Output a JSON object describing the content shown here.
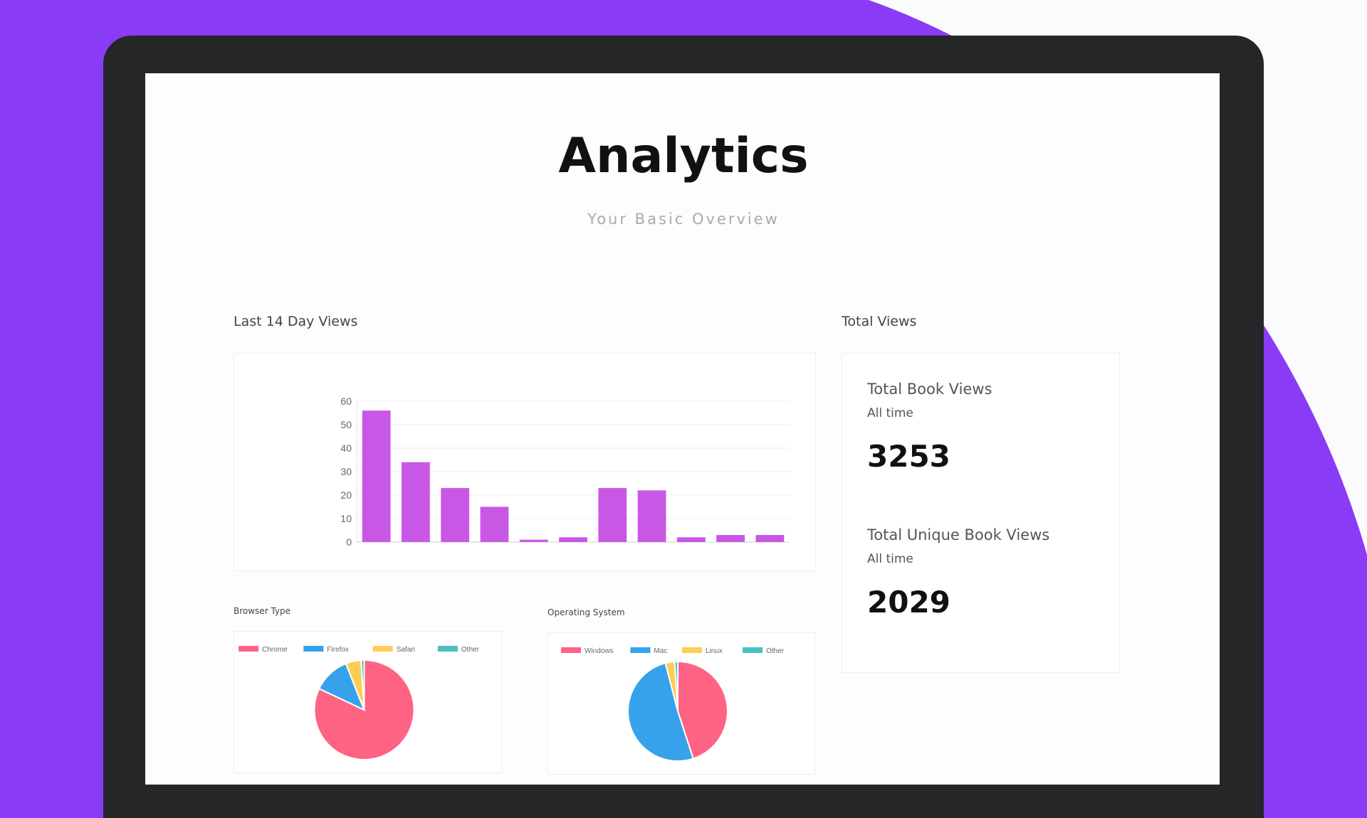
{
  "header": {
    "title": "Analytics",
    "subtitle": "Your Basic Overview"
  },
  "sections": {
    "last14": "Last 14 Day Views",
    "total": "Total Views",
    "browser": "Browser Type",
    "os": "Operating System"
  },
  "totals": [
    {
      "label": "Total Book Views",
      "period": "All time",
      "value": "3253"
    },
    {
      "label": "Total Unique Book Views",
      "period": "All time",
      "value": "2029"
    }
  ],
  "colors": {
    "background": "#8a3bf5",
    "bar": "#c957e6",
    "pink": "#ff6384",
    "blue": "#36a2eb",
    "yellow": "#ffcd56",
    "teal": "#4bc0c0"
  },
  "chart_data": [
    {
      "type": "bar",
      "title": "",
      "values": [
        56,
        34,
        23,
        15,
        1,
        2,
        23,
        22,
        2,
        3,
        3
      ],
      "yticks": [
        0,
        10,
        20,
        30,
        40,
        50,
        60
      ],
      "ylim": [
        0,
        60
      ],
      "grid": true
    },
    {
      "type": "pie",
      "legend": "top",
      "categories": [
        "Chrome",
        "Firefox",
        "Safari",
        "Other"
      ],
      "values": [
        82,
        12,
        5,
        1
      ],
      "colors": [
        "#ff6384",
        "#36a2eb",
        "#ffcd56",
        "#4bc0c0"
      ]
    },
    {
      "type": "pie",
      "legend": "top",
      "categories": [
        "Windows",
        "Mac",
        "Linux",
        "Other"
      ],
      "values": [
        45,
        51,
        3,
        1
      ],
      "colors": [
        "#ff6384",
        "#36a2eb",
        "#ffcd56",
        "#4bc0c0"
      ]
    }
  ]
}
